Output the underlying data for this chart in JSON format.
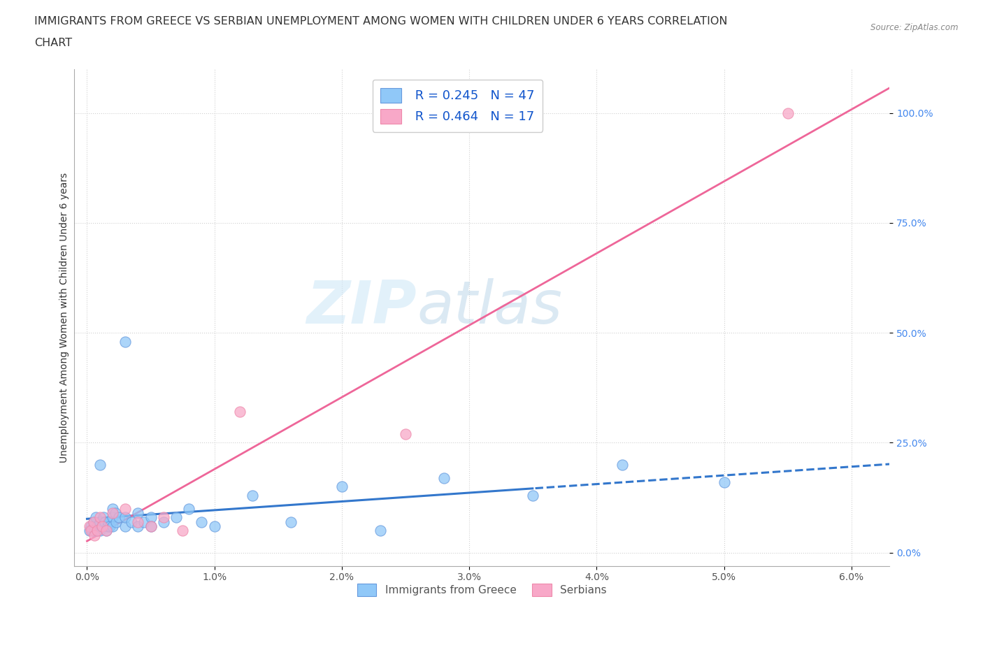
{
  "title_line1": "IMMIGRANTS FROM GREECE VS SERBIAN UNEMPLOYMENT AMONG WOMEN WITH CHILDREN UNDER 6 YEARS CORRELATION",
  "title_line2": "CHART",
  "source": "Source: ZipAtlas.com",
  "ylabel": "Unemployment Among Women with Children Under 6 years",
  "xlabel_ticks": [
    "0.0%",
    "1.0%",
    "2.0%",
    "3.0%",
    "4.0%",
    "5.0%",
    "6.0%"
  ],
  "ytick_labels": [
    "0.0%",
    "25.0%",
    "50.0%",
    "75.0%",
    "100.0%"
  ],
  "ytick_values": [
    0.0,
    0.25,
    0.5,
    0.75,
    1.0
  ],
  "xtick_values": [
    0.0,
    0.01,
    0.02,
    0.03,
    0.04,
    0.05,
    0.06
  ],
  "xlim": [
    -0.001,
    0.063
  ],
  "ylim": [
    -0.03,
    1.1
  ],
  "legend_label1": "Immigrants from Greece",
  "legend_label2": "Serbians",
  "R1": 0.245,
  "N1": 47,
  "R2": 0.464,
  "N2": 17,
  "color1": "#90c8f8",
  "color2": "#f8a8c8",
  "color1_edge": "#6699dd",
  "color2_edge": "#ee88aa",
  "trendline1_color": "#3377cc",
  "trendline2_color": "#ee6699",
  "watermark_zip": "ZIP",
  "watermark_atlas": "atlas",
  "background_color": "#ffffff",
  "grid_color": "#cccccc",
  "title_fontsize": 11.5,
  "axis_fontsize": 10,
  "tick_fontsize": 10,
  "greece_x": [
    0.0002,
    0.0003,
    0.0004,
    0.0005,
    0.0005,
    0.0006,
    0.0007,
    0.0008,
    0.0008,
    0.001,
    0.001,
    0.001,
    0.0012,
    0.0013,
    0.0014,
    0.0015,
    0.0016,
    0.0017,
    0.0018,
    0.002,
    0.002,
    0.002,
    0.0022,
    0.0023,
    0.0025,
    0.003,
    0.003,
    0.003,
    0.0035,
    0.004,
    0.004,
    0.0045,
    0.005,
    0.005,
    0.006,
    0.007,
    0.008,
    0.009,
    0.01,
    0.013,
    0.016,
    0.02,
    0.023,
    0.028,
    0.035,
    0.042,
    0.05
  ],
  "greece_y": [
    0.05,
    0.06,
    0.05,
    0.07,
    0.06,
    0.05,
    0.08,
    0.06,
    0.05,
    0.07,
    0.2,
    0.05,
    0.06,
    0.08,
    0.07,
    0.05,
    0.06,
    0.07,
    0.06,
    0.1,
    0.08,
    0.06,
    0.09,
    0.07,
    0.08,
    0.06,
    0.08,
    0.48,
    0.07,
    0.09,
    0.06,
    0.07,
    0.08,
    0.06,
    0.07,
    0.08,
    0.1,
    0.07,
    0.06,
    0.13,
    0.07,
    0.15,
    0.05,
    0.17,
    0.13,
    0.2,
    0.16
  ],
  "serbian_x": [
    0.0002,
    0.0003,
    0.0005,
    0.0006,
    0.0008,
    0.001,
    0.0012,
    0.0015,
    0.002,
    0.003,
    0.004,
    0.005,
    0.006,
    0.0075,
    0.012,
    0.025,
    0.055
  ],
  "serbian_y": [
    0.06,
    0.05,
    0.07,
    0.04,
    0.05,
    0.08,
    0.06,
    0.05,
    0.09,
    0.1,
    0.07,
    0.06,
    0.08,
    0.05,
    0.32,
    0.27,
    1.0
  ],
  "trendline_x_start": 0.0,
  "trendline_x_end": 0.063
}
